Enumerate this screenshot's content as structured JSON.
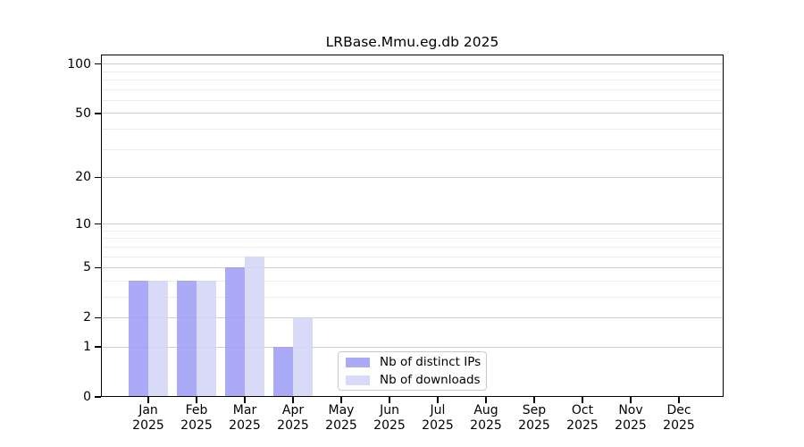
{
  "chart_data": {
    "type": "bar",
    "title": "LRBase.Mmu.eg.db 2025",
    "x_axis": {
      "categories": [
        "Jan",
        "Feb",
        "Mar",
        "Apr",
        "May",
        "Jun",
        "Jul",
        "Aug",
        "Sep",
        "Oct",
        "Nov",
        "Dec"
      ],
      "year_label": "2025"
    },
    "y_axis": {
      "scale": "log1p",
      "tick_labels": [
        100,
        50,
        20,
        10,
        5,
        2,
        1,
        0
      ],
      "major_gridlines": [
        1,
        2,
        5,
        10,
        20,
        50,
        100
      ],
      "minor_gridlines": [
        3,
        4,
        6,
        7,
        8,
        9,
        30,
        40,
        60,
        70,
        80,
        90
      ],
      "range": [
        0,
        101
      ],
      "grid": true
    },
    "series": [
      {
        "name": "Nb of distinct IPs",
        "color": "rgba(155,155,245,0.85)",
        "values": [
          4,
          4,
          5,
          1,
          0,
          0,
          0,
          0,
          0,
          0,
          0,
          0
        ]
      },
      {
        "name": "Nb of downloads",
        "color": "rgba(210,210,247,0.85)",
        "values": [
          4,
          4,
          6,
          2,
          0,
          0,
          0,
          0,
          0,
          0,
          0,
          0
        ]
      }
    ],
    "legend": {
      "position": "bottom-center"
    }
  },
  "colors": {
    "background": "#ffffff",
    "spine": "#000000",
    "grid_major": "#cfcfcf",
    "grid_minor": "#ececec",
    "bar_distinct_ips_visible": "#aaaaf6",
    "bar_downloads_visible": "#d9d9f8"
  }
}
